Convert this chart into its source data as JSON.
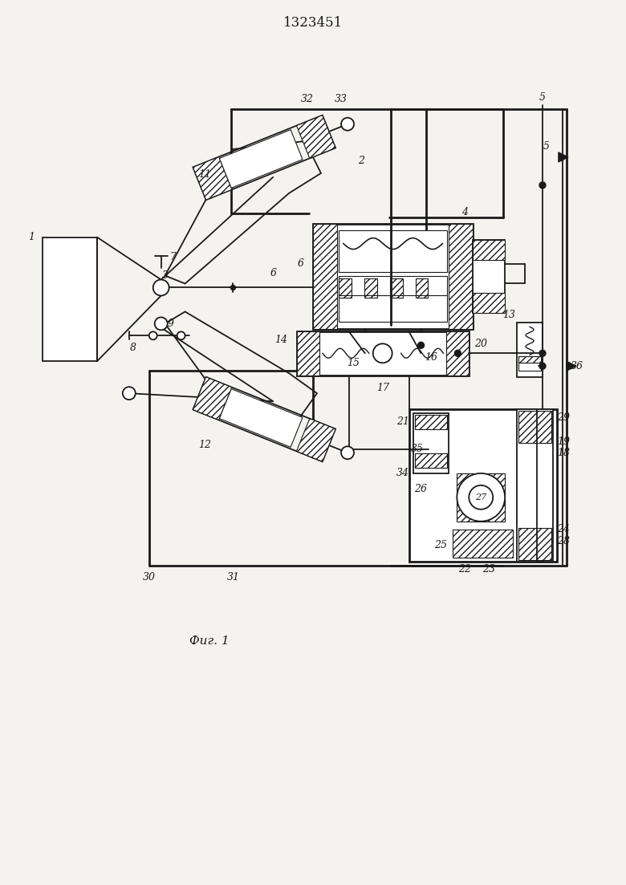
{
  "title": "1323451",
  "caption": "Фиг. 1",
  "bg_color": "#f5f3f0",
  "line_color": "#1a1a1a",
  "fig_width": 7.8,
  "fig_height": 11.03,
  "dpi": 100
}
